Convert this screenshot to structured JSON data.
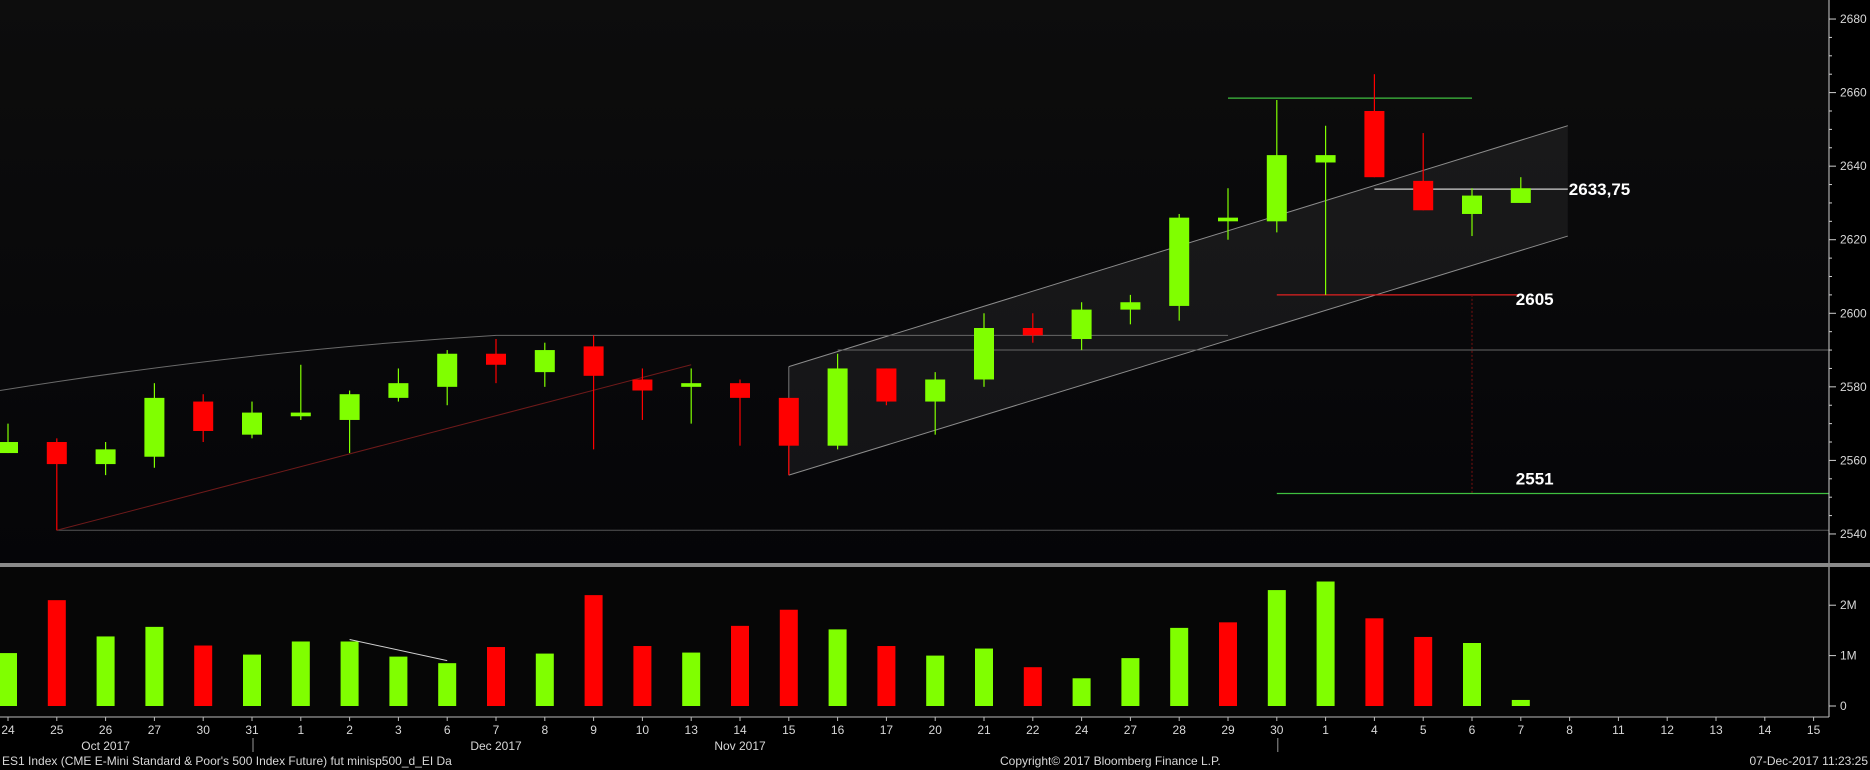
{
  "colors": {
    "up": "#80ff00",
    "down": "#ff0000",
    "grid_text": "#d8d8d8",
    "background": "#000000"
  },
  "footer": {
    "security": "ES1 Index (CME E-Mini Standard & Poor's 500 Index Future) fut minisp500_d_EI  Da",
    "copyright": "Copyright© 2017 Bloomberg Finance L.P.",
    "timestamp": "07-Dec-2017 11:23:25"
  },
  "chart_data": [
    {
      "type": "candlestick",
      "title": "",
      "yticks": [
        2540,
        2560,
        2580,
        2600,
        2620,
        2640,
        2660,
        2680
      ],
      "ylim": [
        2537,
        2683
      ],
      "x": [
        "24",
        "25",
        "26",
        "27",
        "30",
        "31",
        "1",
        "2",
        "3",
        "6",
        "7",
        "8",
        "9",
        "10",
        "13",
        "14",
        "15",
        "16",
        "17",
        "20",
        "21",
        "22",
        "24",
        "27",
        "28",
        "29",
        "30",
        "1",
        "4",
        "5",
        "6",
        "7"
      ],
      "future_x": [
        "8",
        "11",
        "12",
        "13",
        "14",
        "15"
      ],
      "month_labels": [
        {
          "label": "Oct 2017",
          "at": "26"
        },
        {
          "label": "Nov 2017",
          "at": "14"
        },
        {
          "label": "Dec 2017",
          "at": "7"
        }
      ],
      "candles": [
        {
          "o": 2562,
          "h": 2570,
          "l": 2562,
          "c": 2565
        },
        {
          "o": 2565,
          "h": 2566,
          "l": 2541,
          "c": 2559
        },
        {
          "o": 2559,
          "h": 2565,
          "l": 2556,
          "c": 2563
        },
        {
          "o": 2561,
          "h": 2581,
          "l": 2558,
          "c": 2577
        },
        {
          "o": 2576,
          "h": 2578,
          "l": 2565,
          "c": 2568
        },
        {
          "o": 2567,
          "h": 2576,
          "l": 2566,
          "c": 2573
        },
        {
          "o": 2572,
          "h": 2586,
          "l": 2571,
          "c": 2573
        },
        {
          "o": 2571,
          "h": 2579,
          "l": 2562,
          "c": 2578
        },
        {
          "o": 2577,
          "h": 2585,
          "l": 2576,
          "c": 2581
        },
        {
          "o": 2580,
          "h": 2590,
          "l": 2575,
          "c": 2589
        },
        {
          "o": 2589,
          "h": 2593,
          "l": 2581,
          "c": 2586
        },
        {
          "o": 2584,
          "h": 2592,
          "l": 2580,
          "c": 2590
        },
        {
          "o": 2591,
          "h": 2594,
          "l": 2563,
          "c": 2583
        },
        {
          "o": 2582,
          "h": 2585,
          "l": 2571,
          "c": 2579
        },
        {
          "o": 2580,
          "h": 2585,
          "l": 2570,
          "c": 2581
        },
        {
          "o": 2581,
          "h": 2582,
          "l": 2564,
          "c": 2577
        },
        {
          "o": 2577,
          "h": 2577,
          "l": 2556,
          "c": 2564
        },
        {
          "o": 2564,
          "h": 2589,
          "l": 2563,
          "c": 2585
        },
        {
          "o": 2585,
          "h": 2585,
          "l": 2575,
          "c": 2576
        },
        {
          "o": 2576,
          "h": 2584,
          "l": 2567,
          "c": 2582
        },
        {
          "o": 2582,
          "h": 2600,
          "l": 2580,
          "c": 2596
        },
        {
          "o": 2596,
          "h": 2600,
          "l": 2592,
          "c": 2594
        },
        {
          "o": 2593,
          "h": 2603,
          "l": 2590,
          "c": 2601
        },
        {
          "o": 2601,
          "h": 2605,
          "l": 2597,
          "c": 2603
        },
        {
          "o": 2602,
          "h": 2627,
          "l": 2598,
          "c": 2626
        },
        {
          "o": 2625,
          "h": 2634,
          "l": 2620,
          "c": 2626
        },
        {
          "o": 2625,
          "h": 2658,
          "l": 2622,
          "c": 2643
        },
        {
          "o": 2641,
          "h": 2651,
          "l": 2605,
          "c": 2643
        },
        {
          "o": 2655,
          "h": 2665,
          "l": 2637,
          "c": 2637
        },
        {
          "o": 2636,
          "h": 2649,
          "l": 2628,
          "c": 2628
        },
        {
          "o": 2627,
          "h": 2634,
          "l": 2621,
          "c": 2632
        },
        {
          "o": 2630,
          "h": 2637,
          "l": 2630,
          "c": 2634
        }
      ],
      "annotations": [
        {
          "label": "2633,75",
          "value": 2633.75
        },
        {
          "label": "2605",
          "value": 2605
        },
        {
          "label": "2551",
          "value": 2551
        }
      ]
    },
    {
      "type": "bar",
      "title": "",
      "yticks": [
        0,
        1,
        2
      ],
      "ytick_labels": [
        "0",
        "1M",
        "2M"
      ],
      "ylim": [
        0,
        2.5
      ],
      "values": [
        1.05,
        2.1,
        1.38,
        1.57,
        1.2,
        1.02,
        1.28,
        1.28,
        0.98,
        0.85,
        1.17,
        1.04,
        2.2,
        1.19,
        1.06,
        1.59,
        1.91,
        1.52,
        1.19,
        1.0,
        1.14,
        0.77,
        0.55,
        0.95,
        1.55,
        1.66,
        2.3,
        2.47,
        1.74,
        1.37,
        1.25,
        0.12
      ],
      "colors": [
        "up",
        "down",
        "up",
        "up",
        "down",
        "up",
        "up",
        "up",
        "up",
        "up",
        "down",
        "up",
        "down",
        "down",
        "up",
        "down",
        "down",
        "up",
        "down",
        "up",
        "up",
        "down",
        "up",
        "up",
        "up",
        "down",
        "up",
        "up",
        "down",
        "down",
        "up",
        "up"
      ]
    }
  ]
}
